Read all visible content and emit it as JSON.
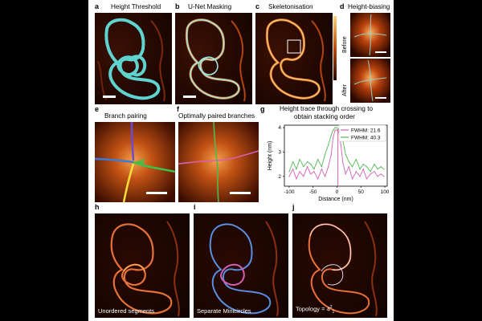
{
  "panels": {
    "a": {
      "label": "a",
      "title": "Height Threshold"
    },
    "b": {
      "label": "b",
      "title": "U-Net Masking"
    },
    "c": {
      "label": "c",
      "title": "Skeletonisation"
    },
    "d": {
      "label": "d",
      "title": "Height-biasing",
      "before": "Before",
      "after": "After"
    },
    "e": {
      "label": "e",
      "title": "Branch pairing"
    },
    "f": {
      "label": "f",
      "title": "Optimally paired branches"
    },
    "g": {
      "label": "g",
      "title_line1": "Height trace through crossing to",
      "title_line2": "obtain stacking order"
    },
    "h": {
      "label": "h",
      "caption": "Unordered segments"
    },
    "i": {
      "label": "i",
      "caption": "Separate Minicircles"
    },
    "j": {
      "label": "j",
      "caption": "Topology = 4",
      "caption_sup": "2",
      "caption_sub": "1"
    }
  },
  "colors": {
    "cyan": "#5fd3d0",
    "pink": "#d65fb5",
    "green": "#4fb84f",
    "blue": "#5a8fe0",
    "afm_dark": "#1a0500",
    "afm_bright": "#ff9a2e"
  },
  "chart_data": {
    "type": "line",
    "title": "Height trace through crossing to obtain stacking order",
    "xlabel": "Distance (nm)",
    "ylabel": "Height (nm)",
    "xlim": [
      -110,
      105
    ],
    "ylim": [
      1.6,
      4.1
    ],
    "xticks": [
      -100,
      -50,
      0,
      50,
      100
    ],
    "yticks": [
      2,
      3,
      4
    ],
    "legend_position": "top-right",
    "series": [
      {
        "name": "FWHM: 21.6",
        "color": "#d65fb5",
        "x": [
          -100,
          -92,
          -85,
          -78,
          -70,
          -62,
          -55,
          -48,
          -40,
          -32,
          -25,
          -18,
          -12,
          -8,
          -4,
          0,
          4,
          8,
          12,
          18,
          25,
          32,
          40,
          48,
          55,
          62,
          70,
          78,
          85,
          92,
          98
        ],
        "y": [
          2.0,
          2.3,
          1.9,
          2.2,
          2.0,
          2.4,
          2.1,
          2.2,
          1.9,
          2.3,
          2.0,
          2.4,
          2.9,
          3.6,
          3.9,
          3.9,
          3.8,
          3.3,
          2.6,
          2.1,
          2.4,
          1.9,
          2.2,
          2.0,
          2.3,
          1.9,
          2.1,
          2.2,
          2.0,
          2.1,
          2.0
        ]
      },
      {
        "name": "FWHM: 40.3",
        "color": "#4fb84f",
        "x": [
          -100,
          -92,
          -85,
          -78,
          -70,
          -62,
          -55,
          -48,
          -40,
          -32,
          -25,
          -18,
          -12,
          -8,
          -4,
          0,
          4,
          8,
          12,
          18,
          25,
          32,
          40,
          48,
          55,
          62,
          70,
          78,
          85,
          92,
          98
        ],
        "y": [
          2.2,
          2.6,
          2.3,
          2.7,
          2.4,
          2.6,
          2.5,
          2.3,
          2.7,
          2.4,
          2.9,
          3.3,
          3.7,
          3.9,
          4.0,
          4.0,
          3.9,
          3.8,
          3.5,
          2.9,
          2.6,
          2.4,
          2.7,
          2.3,
          2.5,
          2.4,
          2.2,
          2.5,
          2.3,
          2.4,
          2.3
        ]
      }
    ],
    "annotations": [
      {
        "type": "vline",
        "x": 2,
        "color": "#c43fa0"
      }
    ]
  }
}
